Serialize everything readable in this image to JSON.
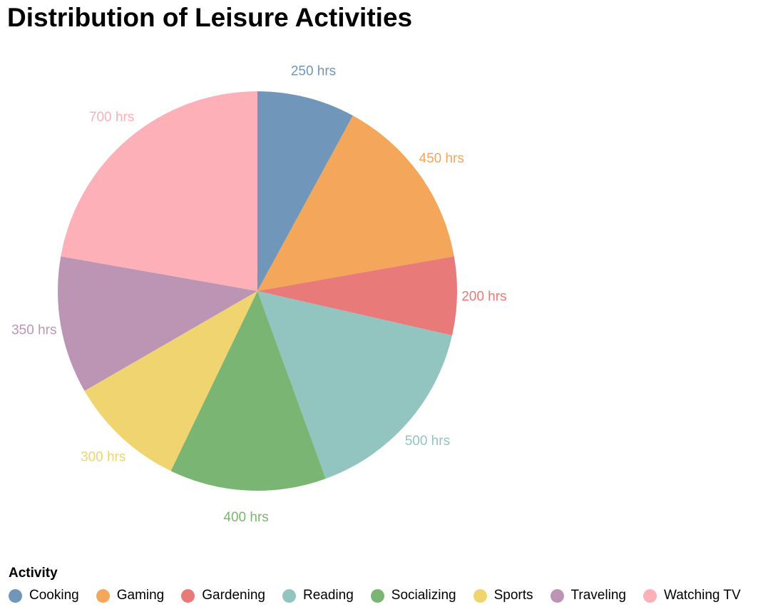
{
  "chart_data": {
    "type": "pie",
    "title": "Distribution of Leisure Activities",
    "legend_title": "Activity",
    "legend_position": "bottom",
    "value_suffix": " hrs",
    "slices": [
      {
        "label": "Cooking",
        "value": 250,
        "color": "#7096b9"
      },
      {
        "label": "Gaming",
        "value": 450,
        "color": "#f4a65a"
      },
      {
        "label": "Gardening",
        "value": 200,
        "color": "#e87a7a"
      },
      {
        "label": "Reading",
        "value": 500,
        "color": "#92c4c0"
      },
      {
        "label": "Socializing",
        "value": 400,
        "color": "#7bb573"
      },
      {
        "label": "Sports",
        "value": 300,
        "color": "#f0d470"
      },
      {
        "label": "Traveling",
        "value": 350,
        "color": "#bd95b4"
      },
      {
        "label": "Watching TV",
        "value": 700,
        "color": "#fdb0b8"
      }
    ]
  }
}
